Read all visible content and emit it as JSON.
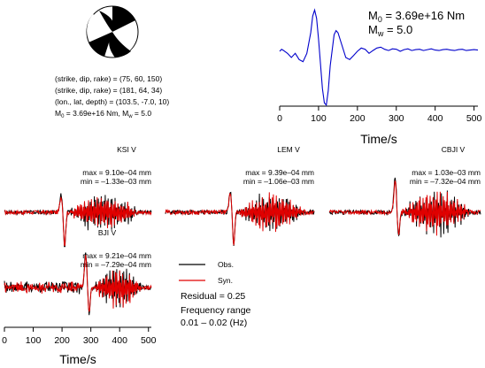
{
  "focal": {
    "lines": [
      "(strike, dip, rake) = (75, 60, 150)",
      "(strike, dip, rake) = (181, 64, 34)",
      "(lon., lat, depth) = (103.5, -7.0, 10)"
    ],
    "moment_prefix": "M",
    "moment_sub": "0",
    "moment_value": " = 3.69e+16 Nm, M",
    "mw_sub": "w",
    "mw_value": " = 5.0"
  },
  "stf": {
    "m0_label": "M",
    "m0_sub": "0",
    "m0_value": " = 3.69e+16 Nm",
    "mw_label": "M",
    "mw_sub": "w",
    "mw_value": " = 5.0",
    "xlabel": "Time/s"
  },
  "legend": {
    "obs": "Obs.",
    "syn": "Syn.",
    "residual": "Residual = 0.25",
    "freq_title": "Frequency range",
    "freq_value": "0.01 – 0.02 (Hz)"
  },
  "chart_data": [
    {
      "type": "line",
      "title": "",
      "xlabel": "Time/s",
      "ylabel": "",
      "xlim": [
        0,
        510
      ],
      "xticks": [
        0,
        100,
        200,
        300,
        400,
        500
      ],
      "series": [
        {
          "color": "#0000cc",
          "x": [
            0,
            5,
            10,
            20,
            30,
            40,
            50,
            60,
            70,
            80,
            85,
            90,
            95,
            100,
            105,
            110,
            115,
            120,
            125,
            130,
            140,
            145,
            150,
            155,
            160,
            170,
            180,
            190,
            200,
            210,
            220,
            230,
            240,
            250,
            260,
            270,
            280,
            290,
            300,
            310,
            320,
            330,
            340,
            350,
            360,
            370,
            380,
            390,
            400,
            410,
            420,
            430,
            440,
            450,
            460,
            470,
            480,
            490,
            500,
            510
          ],
          "y": [
            0.0,
            0.05,
            0.02,
            -0.05,
            -0.15,
            -0.05,
            -0.2,
            -0.25,
            -0.05,
            0.45,
            0.85,
            1.0,
            0.8,
            0.3,
            -0.3,
            -0.9,
            -1.25,
            -1.3,
            -0.95,
            -0.35,
            0.4,
            0.5,
            0.45,
            0.3,
            0.15,
            -0.15,
            -0.2,
            -0.1,
            0.0,
            0.08,
            0.05,
            -0.05,
            0.02,
            0.08,
            0.1,
            0.05,
            0.02,
            0.06,
            0.05,
            0.0,
            0.04,
            0.06,
            0.02,
            0.04,
            0.05,
            0.02,
            0.04,
            0.06,
            0.03,
            0.02,
            0.04,
            0.05,
            0.03,
            0.02,
            0.04,
            0.05,
            0.02,
            0.03,
            0.04,
            0.03
          ]
        }
      ]
    },
    {
      "type": "line",
      "title": "KSI V",
      "max_label": "max = 9.10e–04 mm",
      "min_label": "min = –1.33e–03 mm",
      "xlim": [
        0,
        510
      ],
      "series": [
        {
          "name": "Obs.",
          "color": "#000000",
          "seed": 11,
          "burst": [
            205,
            0.5,
            -1.0
          ],
          "noise": 0.55,
          "noise_start": 220,
          "noise_end": 470
        },
        {
          "name": "Syn.",
          "color": "#e00000",
          "seed": 17,
          "burst": [
            205,
            0.45,
            -0.95
          ],
          "noise": 0.5,
          "noise_start": 220,
          "noise_end": 470
        }
      ]
    },
    {
      "type": "line",
      "title": "LEM V",
      "max_label": "max = 9.39e–04 mm",
      "min_label": "min = –1.06e–03 mm",
      "xlim": [
        0,
        510
      ],
      "series": [
        {
          "name": "Obs.",
          "color": "#000000",
          "seed": 23,
          "burst": [
            230,
            0.6,
            -0.95
          ],
          "noise": 0.6,
          "noise_start": 250,
          "noise_end": 480
        },
        {
          "name": "Syn.",
          "color": "#e00000",
          "seed": 29,
          "burst": [
            230,
            0.55,
            -0.9
          ],
          "noise": 0.55,
          "noise_start": 250,
          "noise_end": 480
        }
      ]
    },
    {
      "type": "line",
      "title": "CBJI V",
      "max_label": "max = 1.03e–03 mm",
      "min_label": "min = –7.32e–04 mm",
      "xlim": [
        0,
        510
      ],
      "series": [
        {
          "name": "Obs.",
          "color": "#000000",
          "seed": 31,
          "burst": [
            230,
            1.0,
            -0.7
          ],
          "noise": 0.65,
          "noise_start": 240,
          "noise_end": 480
        },
        {
          "name": "Syn.",
          "color": "#e00000",
          "seed": 37,
          "burst": [
            230,
            0.9,
            -0.65
          ],
          "noise": 0.6,
          "noise_start": 240,
          "noise_end": 480
        }
      ]
    },
    {
      "type": "line",
      "title": "BJI V",
      "max_label": "max = 9.21e–04 mm",
      "min_label": "min = –7.29e–04 mm",
      "xlabel": "Time/s",
      "xlim": [
        0,
        510
      ],
      "xticks": [
        0,
        100,
        200,
        300,
        400,
        500
      ],
      "series": [
        {
          "name": "Obs.",
          "color": "#000000",
          "seed": 41,
          "burst": [
            290,
            1.0,
            -0.75
          ],
          "noise": 0.6,
          "noise_start": 305,
          "noise_end": 480,
          "pre_noise": 0.15
        },
        {
          "name": "Syn.",
          "color": "#e00000",
          "seed": 47,
          "burst": [
            290,
            0.9,
            -0.7
          ],
          "noise": 0.55,
          "noise_start": 305,
          "noise_end": 480,
          "pre_noise": 0.12
        }
      ]
    }
  ]
}
